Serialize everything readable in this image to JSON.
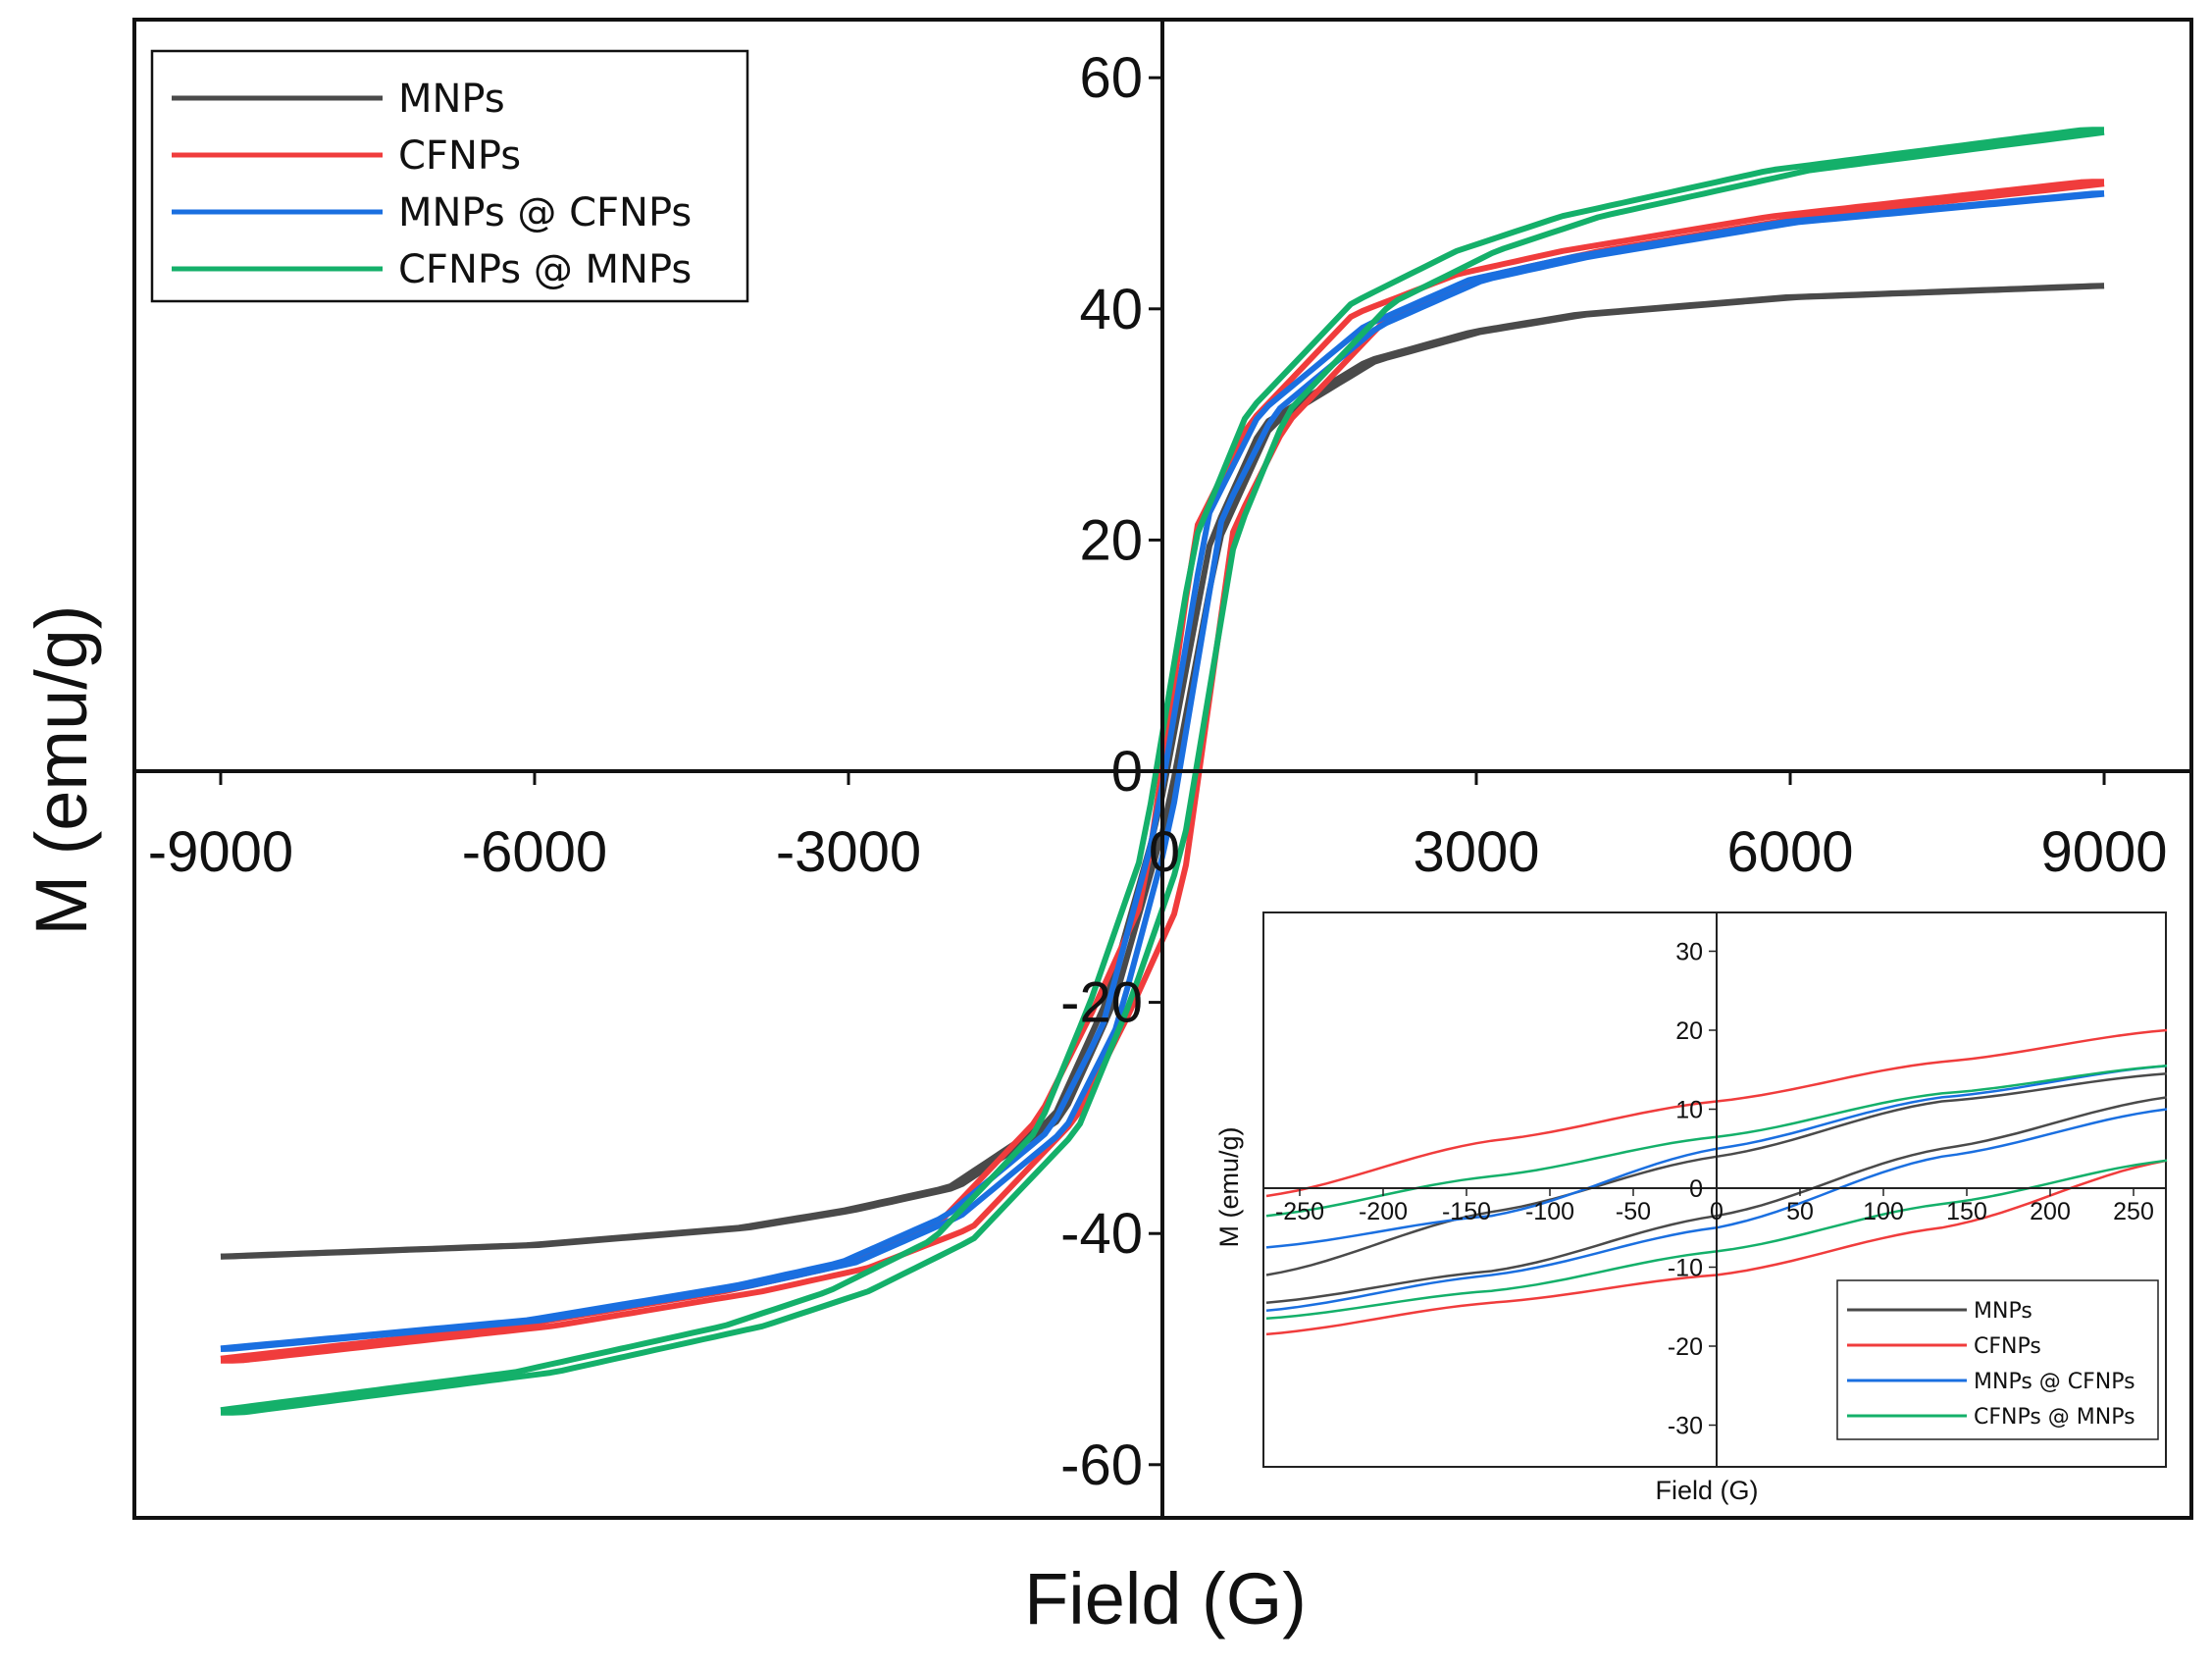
{
  "colors": {
    "MNPs": "#4a4a4a",
    "CFNPs": "#f03c3c",
    "MNPs @ CFNPs": "#1a6fe0",
    "CFNPs @ MNPs": "#14b06a"
  },
  "chart_data": [
    {
      "type": "line",
      "title": "",
      "xlabel": "Field (G)",
      "ylabel": "M (emu/g)",
      "xlim": [
        -9000,
        9000
      ],
      "ylim": [
        -65,
        65
      ],
      "xticks": [
        -9000,
        -6000,
        -3000,
        0,
        3000,
        6000,
        9000
      ],
      "yticks": [
        -60,
        -40,
        -20,
        0,
        20,
        40,
        60
      ],
      "grid": false,
      "legend_position": "top-left",
      "series": [
        {
          "name": "MNPs",
          "Ms": 42,
          "Mr": 4,
          "Hc": 40,
          "x": [
            -9000,
            -6000,
            -4000,
            -3000,
            -2000,
            -1000,
            -500,
            0,
            500,
            1000,
            2000,
            3000,
            4000,
            6000,
            9000
          ],
          "y_increasing": [
            -42,
            -41,
            -39.5,
            -38,
            -36,
            -30,
            -20,
            -4,
            20,
            30,
            35.5,
            38,
            39.5,
            41,
            42
          ]
        },
        {
          "name": "CFNPs",
          "Ms": 51,
          "Mr": 11,
          "Hc": 180,
          "x": [
            -9000,
            -6000,
            -4000,
            -3000,
            -2000,
            -1000,
            -500,
            0,
            500,
            1000,
            2000,
            3000,
            4000,
            6000,
            9000
          ],
          "y_increasing": [
            -51,
            -48,
            -45,
            -43,
            -39.5,
            -30,
            -21,
            -11,
            21,
            30,
            39.5,
            43,
            45,
            48,
            51
          ]
        },
        {
          "name": "MNPs @ CFNPs",
          "Ms": 50,
          "Mr": 5,
          "Hc": 70,
          "x": [
            -9000,
            -6000,
            -4000,
            -3000,
            -2000,
            -1000,
            -500,
            0,
            500,
            1000,
            2000,
            3000,
            4000,
            6000,
            9000
          ],
          "y_increasing": [
            -50,
            -47.5,
            -44.5,
            -42.5,
            -38.5,
            -31,
            -22,
            -5,
            22,
            31,
            38.5,
            42.5,
            44.5,
            47.5,
            50
          ]
        },
        {
          "name": "CFNPs @ MNPs",
          "Ms": 55.5,
          "Mr": 7,
          "Hc": 190,
          "x": [
            -9000,
            -6000,
            -4000,
            -3000,
            -2000,
            -1000,
            -500,
            0,
            500,
            1000,
            2000,
            3000,
            4000,
            6000,
            9000
          ],
          "y_increasing": [
            -55.5,
            -52,
            -48,
            -45,
            -40.5,
            -31,
            -20,
            -7,
            20,
            31,
            40.5,
            45,
            48,
            52,
            55.5
          ]
        }
      ]
    },
    {
      "type": "line",
      "title": "",
      "xlabel": "Field (G)",
      "ylabel": "M (emu/g)",
      "xlim": [
        -270,
        270
      ],
      "ylim": [
        -35,
        35
      ],
      "xticks": [
        -250,
        -200,
        -150,
        -100,
        -50,
        0,
        50,
        100,
        150,
        200,
        250
      ],
      "yticks": [
        -30,
        -20,
        -10,
        0,
        10,
        20,
        30
      ],
      "grid": false,
      "legend_position": "bottom-right",
      "series": [
        {
          "name": "MNPs",
          "x": [
            -270,
            -135,
            0,
            135,
            270
          ],
          "y_upper": [
            -11,
            -3,
            4,
            11,
            14.5
          ],
          "y_lower": [
            -14.5,
            -10.5,
            -3.5,
            5,
            11.5
          ]
        },
        {
          "name": "CFNPs",
          "x": [
            -270,
            -135,
            0,
            135,
            270
          ],
          "y_upper": [
            -1,
            6,
            11,
            16,
            20
          ],
          "y_lower": [
            -18.5,
            -14.5,
            -11,
            -5,
            3.5
          ]
        },
        {
          "name": "MNPs @ CFNPs",
          "x": [
            -270,
            -135,
            0,
            135,
            270
          ],
          "y_upper": [
            -7.5,
            -3.5,
            5,
            11.5,
            15.5
          ],
          "y_lower": [
            -15.5,
            -11,
            -5,
            4,
            10
          ]
        },
        {
          "name": "CFNPs @ MNPs",
          "x": [
            -270,
            -135,
            0,
            135,
            270
          ],
          "y_upper": [
            -3.5,
            1.5,
            6.5,
            12,
            15.5
          ],
          "y_lower": [
            -16.5,
            -13,
            -8,
            -2,
            3.5
          ]
        }
      ]
    }
  ]
}
